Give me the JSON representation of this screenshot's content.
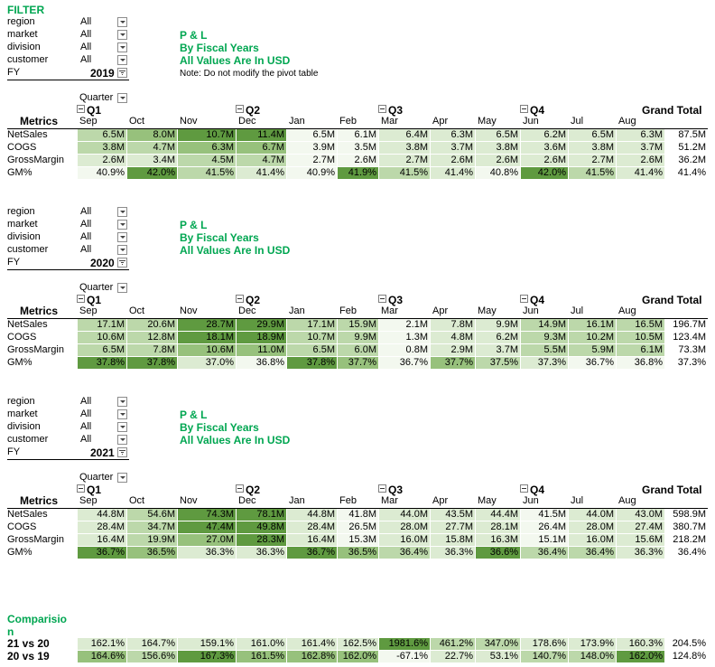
{
  "filter_title": "FILTER",
  "blocks": [
    {
      "filters": [
        {
          "label": "region",
          "value": "All"
        },
        {
          "label": "market",
          "value": "All"
        },
        {
          "label": "division",
          "value": "All"
        },
        {
          "label": "customer",
          "value": "All"
        }
      ],
      "fy_label": "FY",
      "fy_value": "2019",
      "titles": [
        "P & L",
        "By Fiscal Years",
        "All Values Are In USD"
      ],
      "note": "Note: Do not modify the pivot table",
      "quarter_label": "Quarter",
      "quarters": [
        "Q1",
        "Q2",
        "Q3",
        "Q4"
      ],
      "metrics_label": "Metrics",
      "months": [
        "Sep",
        "Oct",
        "Nov",
        "Dec",
        "Jan",
        "Feb",
        "Mar",
        "Apr",
        "May",
        "Jun",
        "Jul",
        "Aug"
      ],
      "grand_total_label": "Grand Total",
      "rows": [
        {
          "label": "NetSales",
          "values": [
            "6.5M",
            "8.0M",
            "10.7M",
            "11.4M",
            "6.5M",
            "6.1M",
            "6.4M",
            "6.3M",
            "6.5M",
            "6.2M",
            "6.5M",
            "6.3M"
          ],
          "total": "87.5M",
          "shade": [
            2,
            3,
            4,
            4,
            0,
            0,
            1,
            1,
            1,
            1,
            1,
            1
          ]
        },
        {
          "label": "COGS",
          "values": [
            "3.8M",
            "4.7M",
            "6.3M",
            "6.7M",
            "3.9M",
            "3.5M",
            "3.8M",
            "3.7M",
            "3.8M",
            "3.6M",
            "3.8M",
            "3.7M"
          ],
          "total": "51.2M",
          "shade": [
            2,
            2,
            3,
            3,
            0,
            0,
            1,
            1,
            1,
            1,
            1,
            1
          ]
        },
        {
          "label": "GrossMargin",
          "values": [
            "2.6M",
            "3.4M",
            "4.5M",
            "4.7M",
            "2.7M",
            "2.6M",
            "2.7M",
            "2.6M",
            "2.6M",
            "2.6M",
            "2.7M",
            "2.6M"
          ],
          "total": "36.2M",
          "shade": [
            1,
            1,
            2,
            2,
            0,
            0,
            1,
            1,
            1,
            1,
            1,
            1
          ]
        },
        {
          "label": "GM%",
          "values": [
            "40.9%",
            "42.0%",
            "41.5%",
            "41.4%",
            "40.9%",
            "41.9%",
            "41.5%",
            "41.4%",
            "40.8%",
            "42.0%",
            "41.5%",
            "41.4%"
          ],
          "total": "41.4%",
          "shade": [
            0,
            4,
            2,
            1,
            0,
            4,
            2,
            1,
            0,
            4,
            2,
            1
          ]
        }
      ]
    },
    {
      "filters": [
        {
          "label": "region",
          "value": "All"
        },
        {
          "label": "market",
          "value": "All"
        },
        {
          "label": "division",
          "value": "All"
        },
        {
          "label": "customer",
          "value": "All"
        }
      ],
      "fy_label": "FY",
      "fy_value": "2020",
      "titles": [
        "P & L",
        "By Fiscal Years",
        "All Values Are In USD"
      ],
      "note": "",
      "quarter_label": "Quarter",
      "quarters": [
        "Q1",
        "Q2",
        "Q3",
        "Q4"
      ],
      "metrics_label": "Metrics",
      "months": [
        "Sep",
        "Oct",
        "Nov",
        "Dec",
        "Jan",
        "Feb",
        "Mar",
        "Apr",
        "May",
        "Jun",
        "Jul",
        "Aug"
      ],
      "grand_total_label": "Grand Total",
      "rows": [
        {
          "label": "NetSales",
          "values": [
            "17.1M",
            "20.6M",
            "28.7M",
            "29.9M",
            "17.1M",
            "15.9M",
            "2.1M",
            "7.8M",
            "9.9M",
            "14.9M",
            "16.1M",
            "16.5M"
          ],
          "total": "196.7M",
          "shade": [
            2,
            2,
            4,
            4,
            2,
            2,
            0,
            1,
            1,
            2,
            2,
            2
          ]
        },
        {
          "label": "COGS",
          "values": [
            "10.6M",
            "12.8M",
            "18.1M",
            "18.9M",
            "10.7M",
            "9.9M",
            "1.3M",
            "4.8M",
            "6.2M",
            "9.3M",
            "10.2M",
            "10.5M"
          ],
          "total": "123.4M",
          "shade": [
            2,
            2,
            4,
            4,
            2,
            2,
            0,
            1,
            1,
            2,
            2,
            2
          ]
        },
        {
          "label": "GrossMargin",
          "values": [
            "6.5M",
            "7.8M",
            "10.6M",
            "11.0M",
            "6.5M",
            "6.0M",
            "0.8M",
            "2.9M",
            "3.7M",
            "5.5M",
            "5.9M",
            "6.1M"
          ],
          "total": "73.3M",
          "shade": [
            2,
            2,
            3,
            3,
            2,
            2,
            0,
            1,
            1,
            2,
            2,
            2
          ]
        },
        {
          "label": "GM%",
          "values": [
            "37.8%",
            "37.8%",
            "37.0%",
            "36.8%",
            "37.8%",
            "37.7%",
            "36.7%",
            "37.7%",
            "37.5%",
            "37.3%",
            "36.7%",
            "36.8%"
          ],
          "total": "37.3%",
          "shade": [
            4,
            4,
            1,
            0,
            4,
            3,
            0,
            3,
            2,
            1,
            0,
            0
          ]
        }
      ]
    },
    {
      "filters": [
        {
          "label": "region",
          "value": "All"
        },
        {
          "label": "market",
          "value": "All"
        },
        {
          "label": "division",
          "value": "All"
        },
        {
          "label": "customer",
          "value": "All"
        }
      ],
      "fy_label": "FY",
      "fy_value": "2021",
      "titles": [
        "P & L",
        "By Fiscal Years",
        "All Values Are In USD"
      ],
      "note": "",
      "quarter_label": "Quarter",
      "quarters": [
        "Q1",
        "Q2",
        "Q3",
        "Q4"
      ],
      "metrics_label": "Metrics",
      "months": [
        "Sep",
        "Oct",
        "Nov",
        "Dec",
        "Jan",
        "Feb",
        "Mar",
        "Apr",
        "May",
        "Jun",
        "Jul",
        "Aug"
      ],
      "grand_total_label": "Grand Total",
      "rows": [
        {
          "label": "NetSales",
          "values": [
            "44.8M",
            "54.6M",
            "74.3M",
            "78.1M",
            "44.8M",
            "41.8M",
            "44.0M",
            "43.5M",
            "44.4M",
            "41.5M",
            "44.0M",
            "43.0M"
          ],
          "total": "598.9M",
          "shade": [
            1,
            2,
            4,
            4,
            1,
            0,
            1,
            1,
            1,
            0,
            1,
            1
          ]
        },
        {
          "label": "COGS",
          "values": [
            "28.4M",
            "34.7M",
            "47.4M",
            "49.8M",
            "28.4M",
            "26.5M",
            "28.0M",
            "27.7M",
            "28.1M",
            "26.4M",
            "28.0M",
            "27.4M"
          ],
          "total": "380.7M",
          "shade": [
            1,
            2,
            4,
            4,
            1,
            0,
            1,
            1,
            1,
            0,
            1,
            1
          ]
        },
        {
          "label": "GrossMargin",
          "values": [
            "16.4M",
            "19.9M",
            "27.0M",
            "28.3M",
            "16.4M",
            "15.3M",
            "16.0M",
            "15.8M",
            "16.3M",
            "15.1M",
            "16.0M",
            "15.6M"
          ],
          "total": "218.2M",
          "shade": [
            1,
            2,
            3,
            4,
            1,
            0,
            1,
            1,
            1,
            0,
            1,
            1
          ]
        },
        {
          "label": "GM%",
          "values": [
            "36.7%",
            "36.5%",
            "36.3%",
            "36.3%",
            "36.7%",
            "36.5%",
            "36.4%",
            "36.3%",
            "36.6%",
            "36.4%",
            "36.4%",
            "36.3%"
          ],
          "total": "36.4%",
          "shade": [
            4,
            3,
            1,
            1,
            4,
            3,
            2,
            1,
            4,
            2,
            2,
            1
          ]
        }
      ]
    }
  ],
  "comparison": {
    "title_line1": "Comparisio",
    "title_line2": "n",
    "rows": [
      {
        "label": "21 vs 20",
        "values": [
          "162.1%",
          "164.7%",
          "159.1%",
          "161.0%",
          "161.4%",
          "162.5%",
          "1981.6%",
          "461.2%",
          "347.0%",
          "178.6%",
          "173.9%",
          "160.3%"
        ],
        "total": "204.5%",
        "shade": [
          1,
          1,
          1,
          1,
          1,
          1,
          4,
          2,
          2,
          1,
          1,
          1
        ]
      },
      {
        "label": "20 vs 19",
        "values": [
          "164.6%",
          "156.6%",
          "167.3%",
          "161.5%",
          "162.8%",
          "162.0%",
          "-67.1%",
          "22.7%",
          "53.1%",
          "140.7%",
          "148.0%",
          "162.0%"
        ],
        "total": "124.8%",
        "shade": [
          3,
          2,
          4,
          3,
          3,
          3,
          0,
          1,
          1,
          2,
          2,
          4
        ]
      }
    ]
  },
  "colors": {
    "shade0": "#f3f8ef",
    "shade1": "#dcebd2",
    "shade2": "#bcd8aa",
    "shade3": "#97c17c",
    "shade4": "#5f9a40",
    "accent_green": "#00a651"
  }
}
